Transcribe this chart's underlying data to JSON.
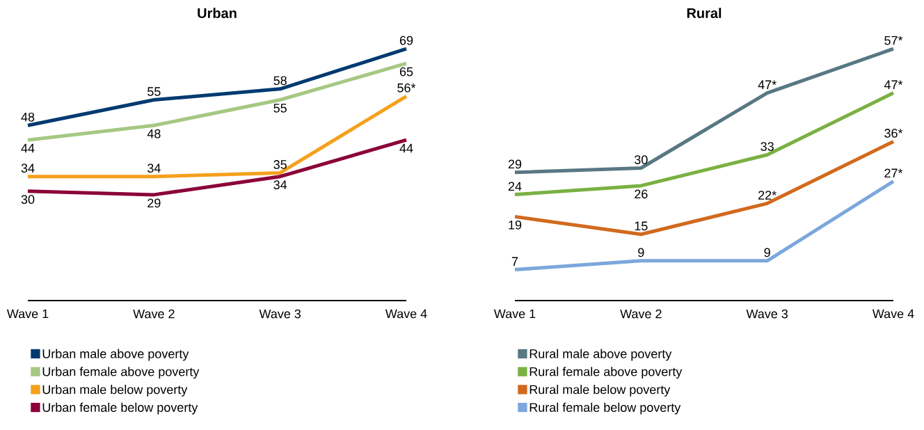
{
  "chart_data": [
    {
      "type": "line",
      "title": "Urban",
      "categories": [
        "Wave 1",
        "Wave 2",
        "Wave 3",
        "Wave 4"
      ],
      "tick_labels": "x",
      "legend": "bottom",
      "series": [
        {
          "name": "Urban male above poverty",
          "color": "#003a70",
          "values": [
            48,
            55,
            58,
            69
          ],
          "value_labels": [
            "48",
            "55",
            "58",
            "69"
          ]
        },
        {
          "name": "Urban female above poverty",
          "color": "#a5c882",
          "values": [
            44,
            48,
            55,
            65
          ],
          "value_labels": [
            "44",
            "48",
            "55",
            "65"
          ]
        },
        {
          "name": "Urban male below poverty",
          "color": "#f5a01d",
          "values": [
            34,
            34,
            35,
            56
          ],
          "value_labels": [
            "34",
            "34",
            "35",
            "56*"
          ]
        },
        {
          "name": "Urban female below poverty",
          "color": "#8b0038",
          "values": [
            30,
            29,
            34,
            44
          ],
          "value_labels": [
            "30",
            "29",
            "34",
            "44"
          ]
        }
      ]
    },
    {
      "type": "line",
      "title": "Rural",
      "categories": [
        "Wave 1",
        "Wave 2",
        "Wave 3",
        "Wave 4"
      ],
      "tick_labels": "x",
      "legend": "bottom",
      "series": [
        {
          "name": "Rural male above poverty",
          "color": "#587882",
          "values": [
            29,
            30,
            47,
            57
          ],
          "value_labels": [
            "29",
            "30",
            "47*",
            "57*"
          ]
        },
        {
          "name": "Rural female above poverty",
          "color": "#79b142",
          "values": [
            24,
            26,
            33,
            47
          ],
          "value_labels": [
            "24",
            "26",
            "33",
            "47*"
          ]
        },
        {
          "name": "Rural male below poverty",
          "color": "#d2691e",
          "values": [
            19,
            15,
            22,
            36
          ],
          "value_labels": [
            "19",
            "15",
            "22*",
            "36*"
          ]
        },
        {
          "name": "Rural female below poverty",
          "color": "#7ba7dc",
          "values": [
            7,
            9,
            9,
            27
          ],
          "value_labels": [
            "7",
            "9",
            "9",
            "27*"
          ]
        }
      ]
    }
  ]
}
